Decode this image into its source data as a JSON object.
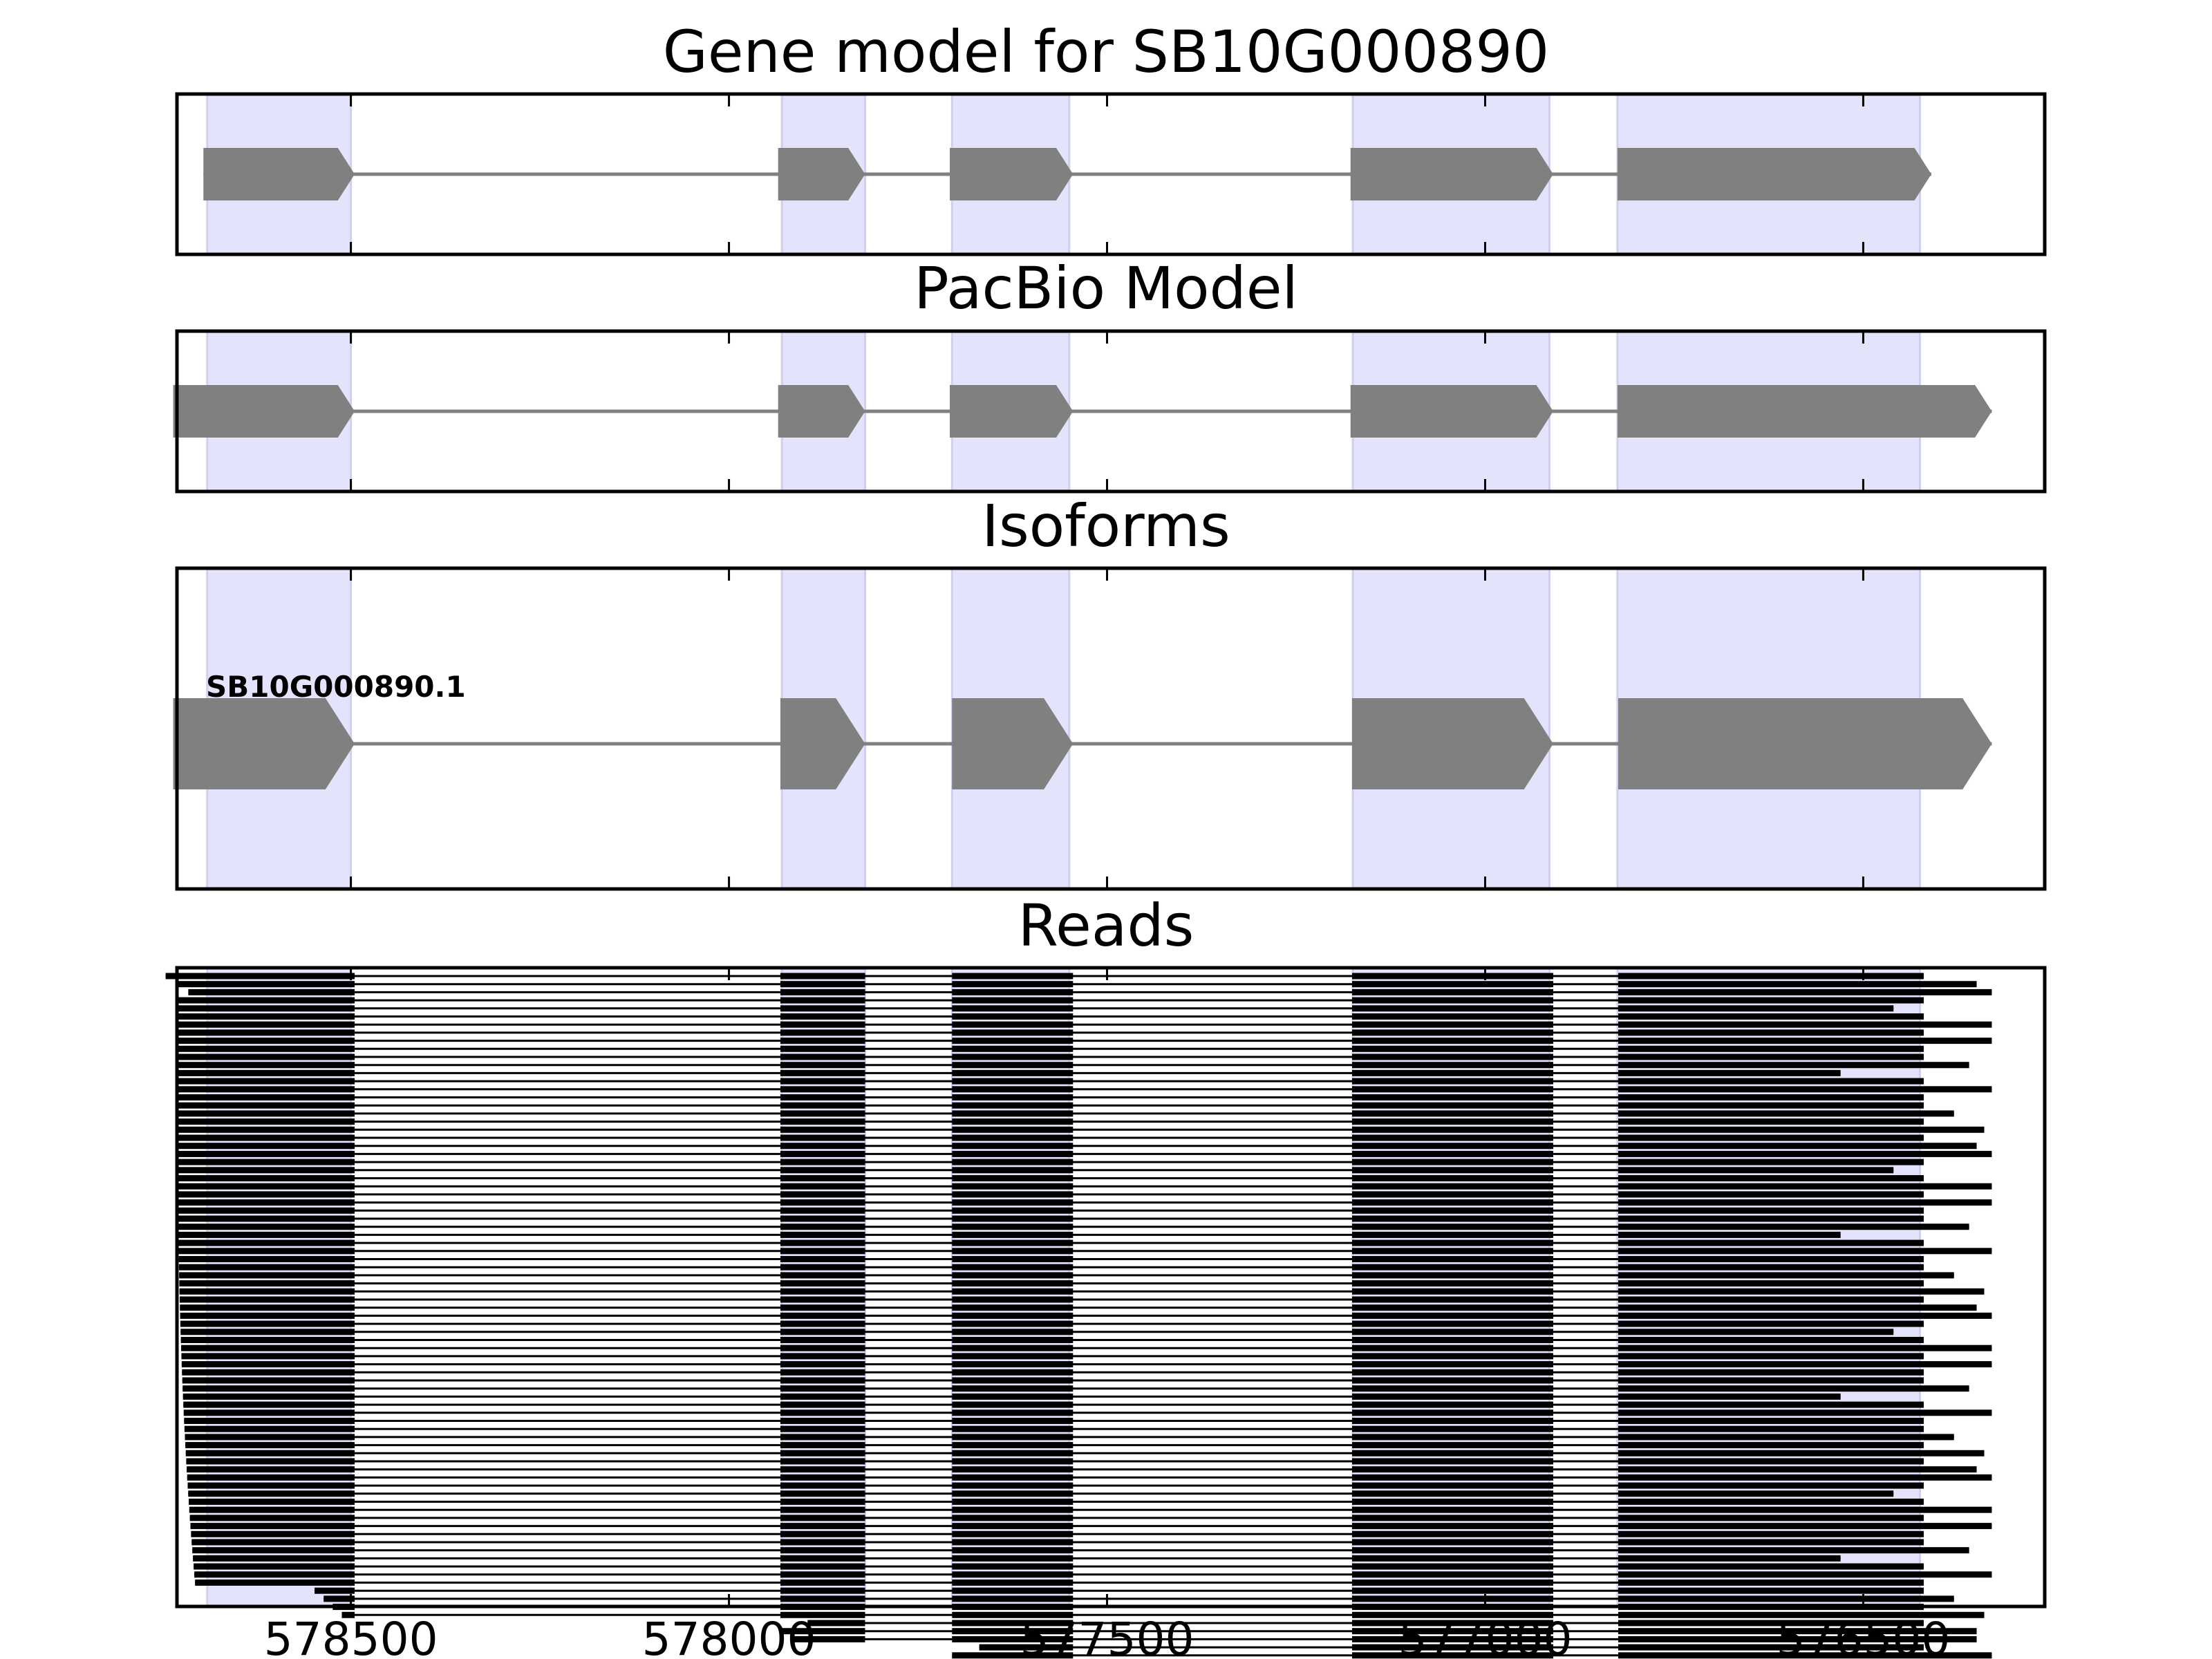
{
  "colors": {
    "exon_shade": "#e3e3fb",
    "exon_shade_edge": "#cfcfee",
    "exon_fill": "#808080",
    "intron_line": "#808080",
    "read_color": "#000000"
  },
  "chart_data": {
    "type": "gene-track",
    "xlim": [
      578730,
      576260
    ],
    "x_direction": "decreasing",
    "x_ticks": [
      578500,
      578000,
      577500,
      577000,
      576500
    ],
    "x_tick_labels": [
      "578500",
      "578000",
      "577500",
      "577000",
      "576500"
    ],
    "shaded_exons": [
      [
        578690,
        578500
      ],
      [
        577930,
        577820
      ],
      [
        577705,
        577550
      ],
      [
        577175,
        576915
      ],
      [
        576825,
        576425
      ]
    ],
    "panels": [
      {
        "id": "gene-model",
        "title": "Gene model for SB10G000890",
        "strand": "-",
        "exons": [
          [
            578695,
            578495
          ],
          [
            577935,
            577820
          ],
          [
            577708,
            577545
          ],
          [
            577178,
            576910
          ],
          [
            576825,
            576410
          ]
        ]
      },
      {
        "id": "pacbio-model",
        "title": "PacBio Model",
        "strand": "-",
        "exons": [
          [
            578735,
            578495
          ],
          [
            577935,
            577820
          ],
          [
            577708,
            577545
          ],
          [
            577178,
            576910
          ],
          [
            576825,
            576330
          ]
        ]
      },
      {
        "id": "isoforms",
        "title": "Isoforms",
        "isoforms": [
          {
            "name": "SB10G000890.1",
            "exons": [
              [
                578735,
                578495
              ],
              [
                577932,
                577820
              ],
              [
                577705,
                577545
              ],
              [
                577176,
                576910
              ],
              [
                576824,
                576330
              ]
            ]
          }
        ]
      },
      {
        "id": "reads",
        "title": "Reads",
        "reads_note": "about 90 aligned reads spanning the exon structure",
        "read_count": 90
      }
    ]
  }
}
